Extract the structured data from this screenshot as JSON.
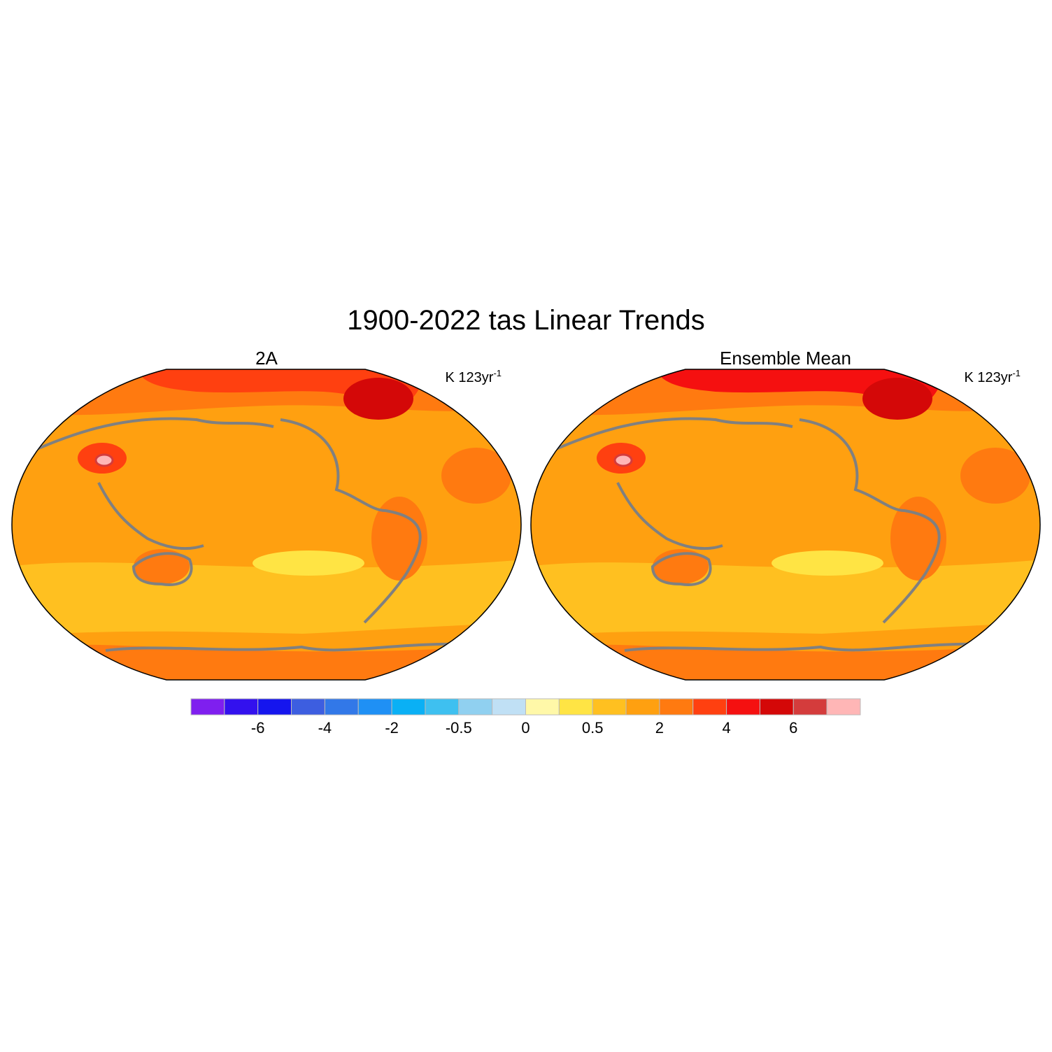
{
  "title": "1900-2022 tas Linear Trends",
  "panels": [
    {
      "title": "2A",
      "units": {
        "base": "K 123yr",
        "sup": "-1"
      }
    },
    {
      "title": "Ensemble Mean",
      "units": {
        "base": "K 123yr",
        "sup": "-1"
      }
    }
  ],
  "colorbar": {
    "colors": [
      "#7f1fef",
      "#3311ee",
      "#1515ee",
      "#3d5ee0",
      "#3278e8",
      "#1f90f5",
      "#0ab0f5",
      "#3ec0f0",
      "#90d0f0",
      "#c0e0f5",
      "#fff8a8",
      "#ffe444",
      "#ffc020",
      "#ffa010",
      "#ff7a10",
      "#ff4010",
      "#f51010",
      "#d40808",
      "#d43c3c",
      "#ffb6b6"
    ],
    "labels": [
      -6,
      -4,
      -2,
      -0.5,
      0,
      0.5,
      2,
      4,
      6
    ]
  }
}
